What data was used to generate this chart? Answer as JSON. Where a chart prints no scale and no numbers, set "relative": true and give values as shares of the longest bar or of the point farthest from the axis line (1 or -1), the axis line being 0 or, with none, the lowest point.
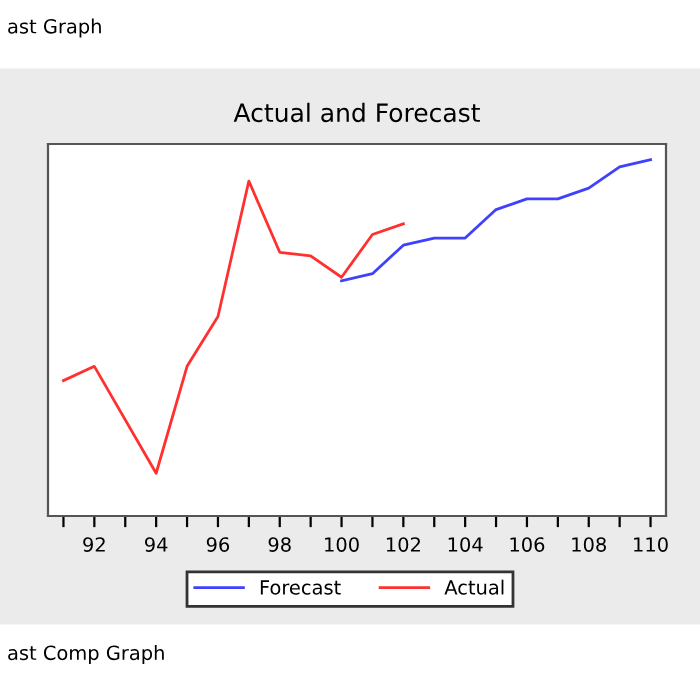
{
  "chart_data": {
    "type": "line",
    "title": "Actual and Forecast",
    "annotations": [
      "ast Graph",
      "ast Comp Graph"
    ],
    "xlim": [
      90.5,
      110.5
    ],
    "xticks": [
      {
        "value": 91,
        "label": null
      },
      92,
      {
        "value": 93,
        "label": null
      },
      94,
      {
        "value": 95,
        "label": null
      },
      96,
      {
        "value": 97,
        "label": null
      },
      98,
      {
        "value": 99,
        "label": null
      },
      100,
      {
        "value": 101,
        "label": null
      },
      102,
      {
        "value": 103,
        "label": null
      },
      104,
      {
        "value": 105,
        "label": null
      },
      106,
      {
        "value": 107,
        "label": null
      },
      108,
      {
        "value": 109,
        "label": null
      },
      110
    ],
    "relative": true,
    "grid": false,
    "legend": "bottom",
    "marker": "none",
    "line_style": "solid",
    "series": [
      {
        "name": "Forecast",
        "color": "#4040ff",
        "x": [
          100,
          101,
          102,
          103,
          104,
          105,
          106,
          107,
          108,
          109,
          110
        ],
        "values": [
          0.66,
          0.68,
          0.76,
          0.78,
          0.78,
          0.86,
          0.89,
          0.89,
          0.92,
          0.98,
          1
        ]
      },
      {
        "name": "Actual",
        "color": "#ff3030",
        "x": [
          91,
          92,
          94,
          95,
          96,
          97,
          98,
          99,
          100,
          101,
          102
        ],
        "values": [
          0.38,
          0.42,
          0.12,
          0.42,
          0.56,
          0.94,
          0.74,
          0.73,
          0.67,
          0.79,
          0.82
        ]
      }
    ]
  }
}
